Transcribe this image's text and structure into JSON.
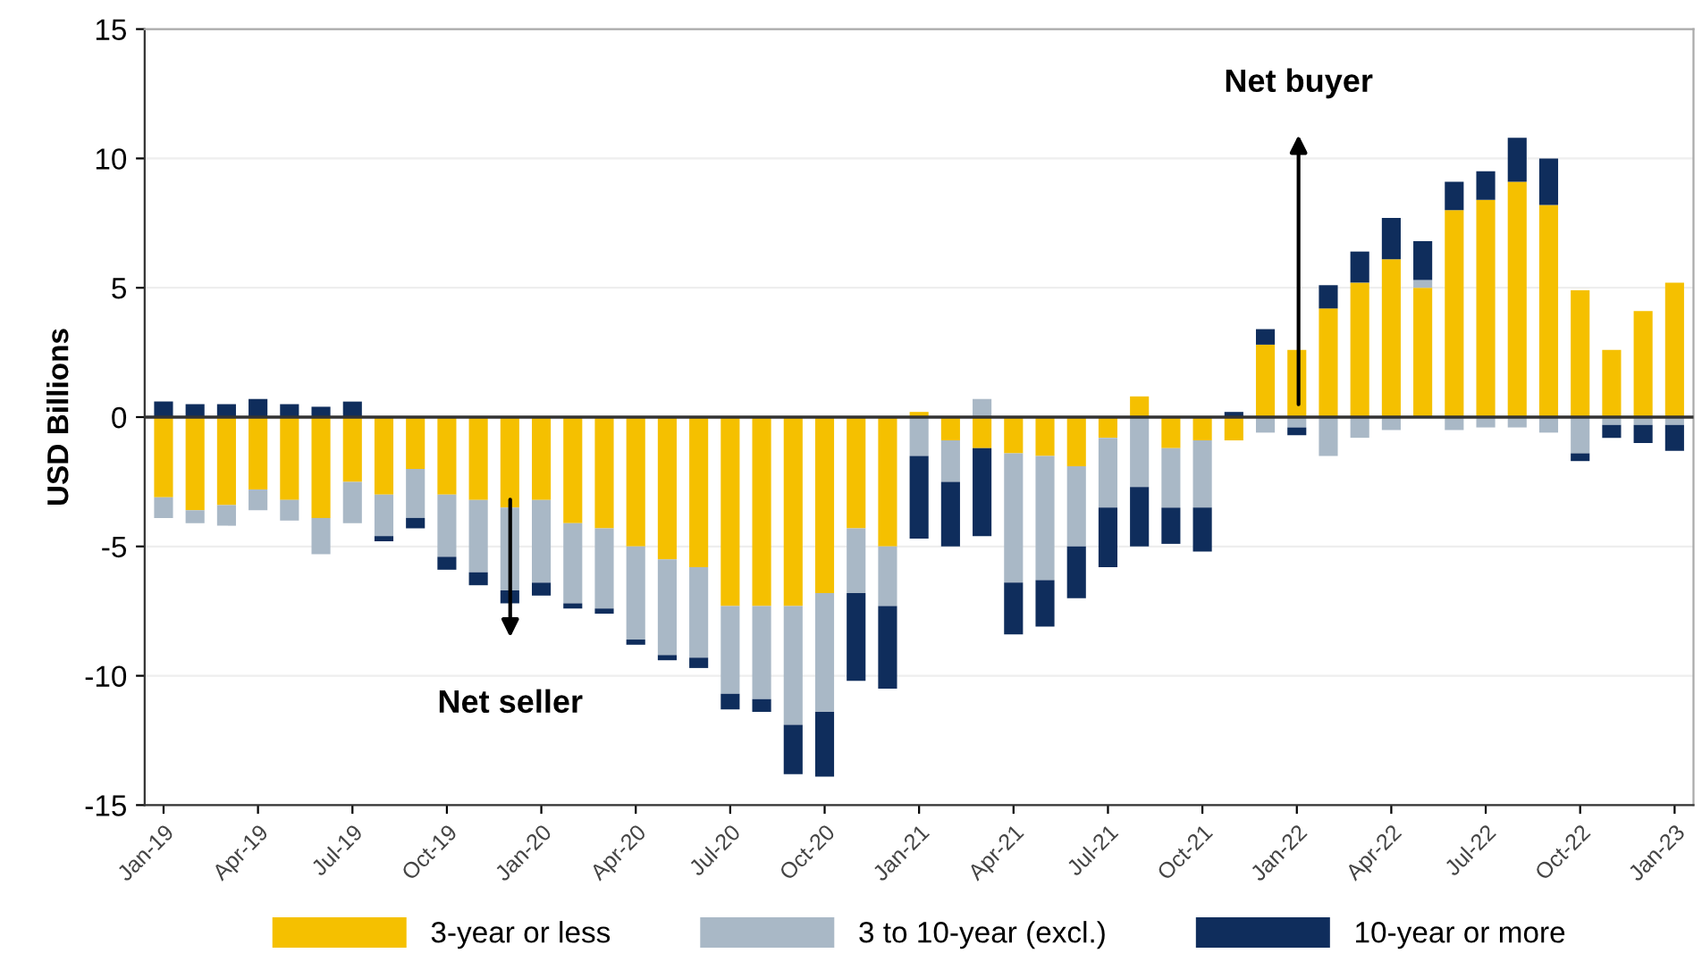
{
  "chart_data": {
    "type": "bar",
    "stacked": true,
    "ylabel": "USD Billions",
    "categories": [
      "Jan-19",
      null,
      null,
      "Apr-19",
      null,
      null,
      "Jul-19",
      null,
      null,
      "Oct-19",
      null,
      null,
      "Jan-20",
      null,
      null,
      "Apr-20",
      null,
      null,
      "Jul-20",
      null,
      null,
      "Oct-20",
      null,
      null,
      "Jan-21",
      null,
      null,
      "Apr-21",
      null,
      null,
      "Jul-21",
      null,
      null,
      "Oct-21",
      null,
      null,
      "Jan-22",
      null,
      null,
      "Apr-22",
      null,
      null,
      "Jul-22",
      null,
      null,
      "Oct-22",
      null,
      null,
      "Jan-23"
    ],
    "series": [
      {
        "name": "3-year or less",
        "color": "#f5c000",
        "values": [
          -3.1,
          -3.6,
          -3.4,
          -2.8,
          -3.2,
          -3.9,
          -2.5,
          -3.0,
          -2.0,
          -3.0,
          -3.2,
          -3.5,
          -3.2,
          -4.1,
          -4.3,
          -5.0,
          -5.5,
          -5.8,
          -7.3,
          -7.3,
          -7.3,
          -6.8,
          -4.3,
          -5.0,
          0.2,
          -0.9,
          -1.2,
          -1.4,
          -1.5,
          -1.9,
          -0.8,
          0.8,
          -1.2,
          -0.9,
          -0.9,
          2.8,
          2.6,
          4.2,
          5.2,
          6.1,
          5.0,
          8.0,
          8.4,
          9.1,
          8.2,
          4.9,
          2.6,
          4.1,
          5.2
        ]
      },
      {
        "name": "3 to 10-year (excl.)",
        "color": "#a9b8c6",
        "values": [
          -0.8,
          -0.5,
          -0.8,
          -0.8,
          -0.8,
          -1.4,
          -1.6,
          -1.6,
          -1.9,
          -2.4,
          -2.8,
          -3.2,
          -3.2,
          -3.1,
          -3.1,
          -3.6,
          -3.7,
          -3.5,
          -3.4,
          -3.6,
          -4.6,
          -4.6,
          -2.5,
          -2.3,
          -1.5,
          -1.6,
          0.7,
          -5.0,
          -4.8,
          -3.1,
          -2.7,
          -2.7,
          -2.3,
          -2.6,
          0,
          -0.6,
          -0.4,
          -1.5,
          -0.8,
          -0.5,
          0.3,
          -0.5,
          -0.4,
          -0.4,
          -0.6,
          -1.4,
          -0.3,
          -0.3,
          -0.3
        ]
      },
      {
        "name": "10-year or more",
        "color": "#0f2d5c",
        "values": [
          0.6,
          0.5,
          0.5,
          0.7,
          0.5,
          0.4,
          0.6,
          -0.2,
          -0.4,
          -0.5,
          -0.5,
          -0.5,
          -0.5,
          -0.2,
          -0.2,
          -0.2,
          -0.2,
          -0.4,
          -0.6,
          -0.5,
          -1.9,
          -2.5,
          -3.4,
          -3.2,
          -3.2,
          -2.5,
          -3.4,
          -2.0,
          -1.8,
          -2.0,
          -2.3,
          -2.3,
          -1.4,
          -1.7,
          0.2,
          0.6,
          -0.3,
          0.9,
          1.2,
          1.6,
          1.5,
          1.1,
          1.1,
          1.7,
          1.8,
          -0.3,
          -0.5,
          -0.7,
          -1.0
        ]
      }
    ],
    "ylim": [
      -15,
      15
    ],
    "yticks": [
      -15,
      -10,
      -5,
      0,
      5,
      10,
      15
    ],
    "grid": "y",
    "legend": "bottom",
    "ref_lines": [
      {
        "axis": "y",
        "value": 0,
        "color": "#333333"
      }
    ],
    "annotations": [
      "Net seller",
      "Net buyer"
    ]
  }
}
